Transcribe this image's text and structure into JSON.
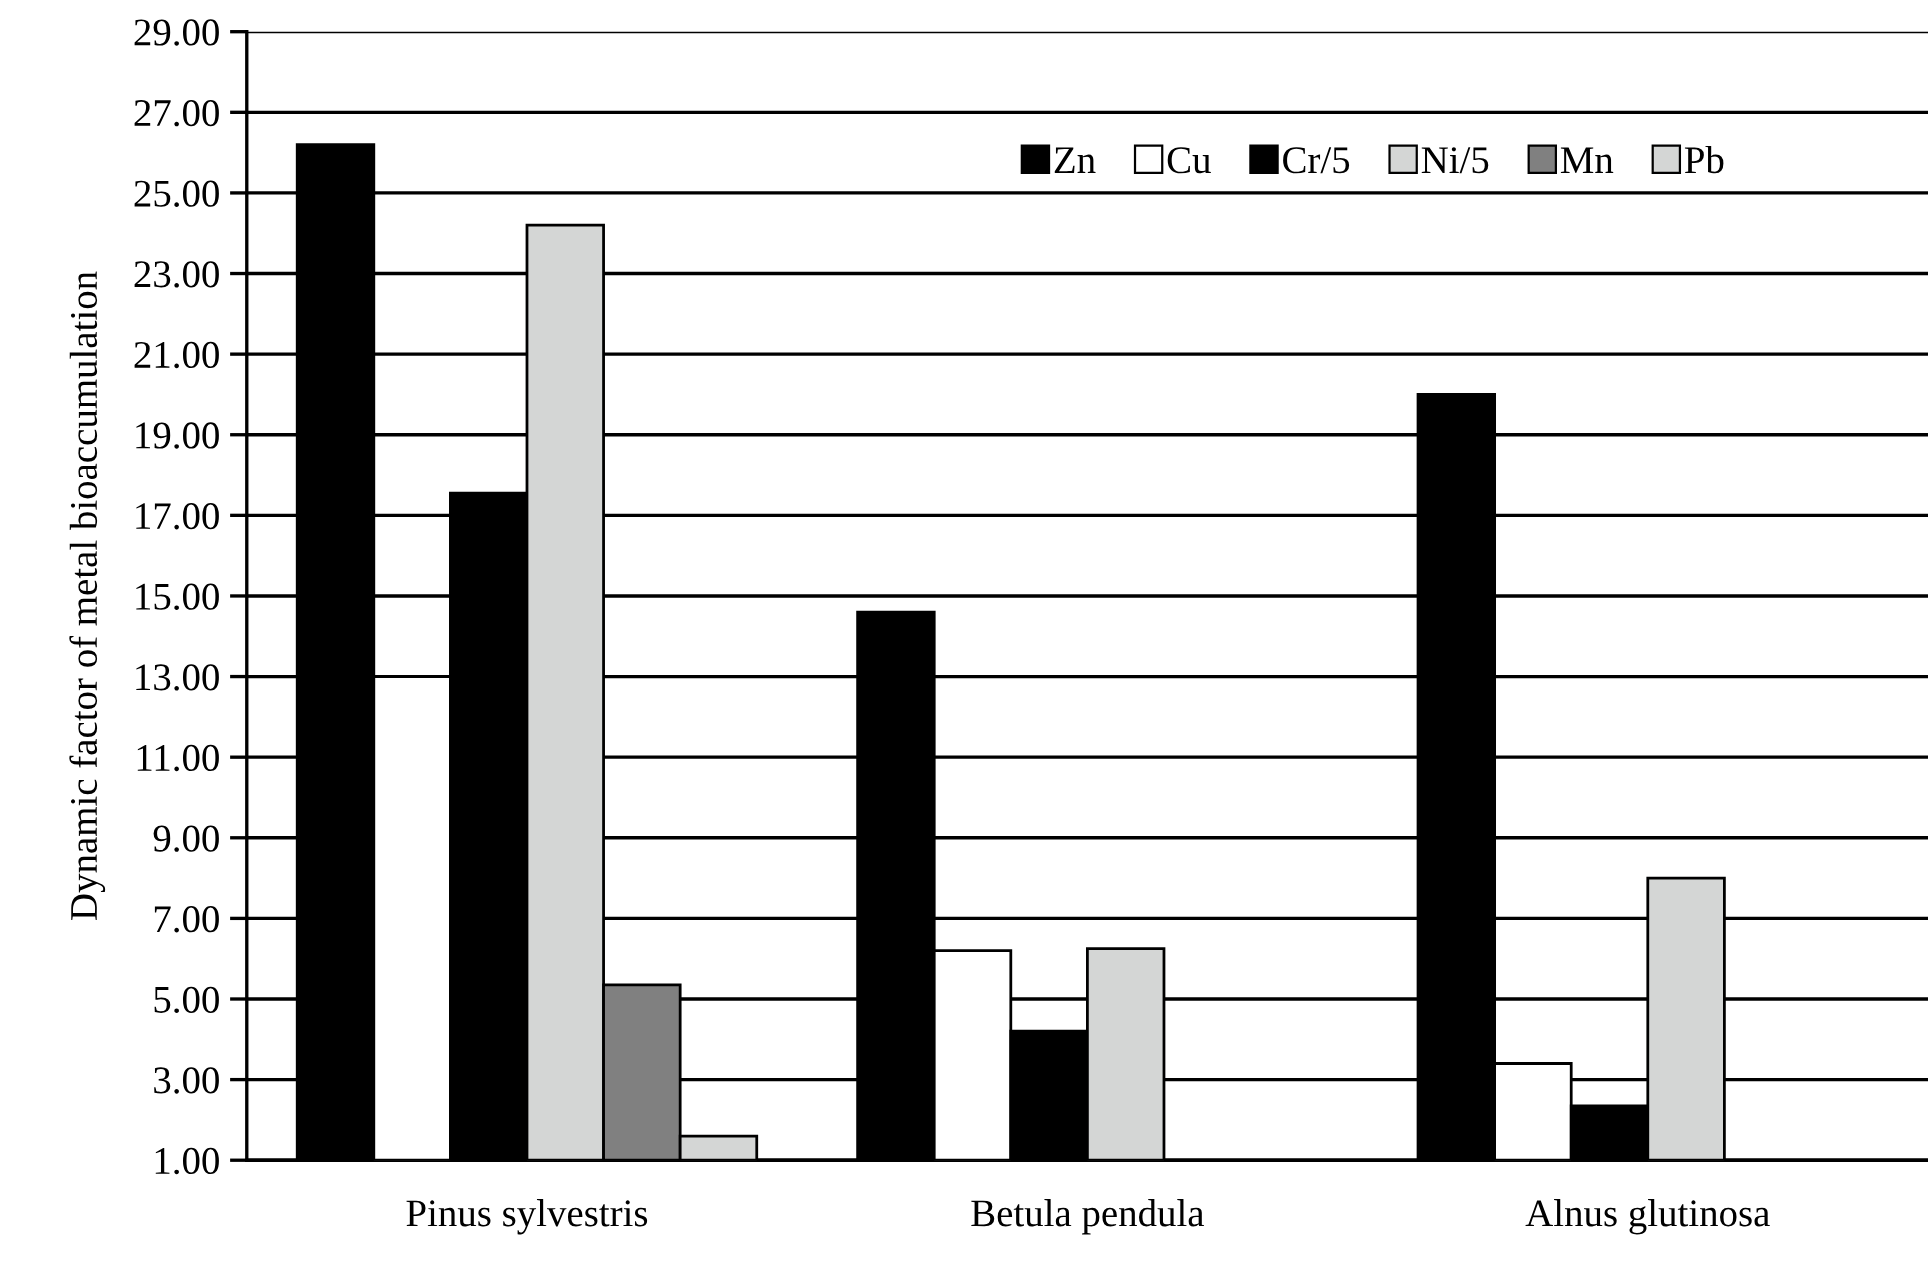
{
  "chart_data": {
    "type": "bar",
    "ylabel": "Dynamic factor of metal bioaccumulation",
    "categories": [
      "Pinus sylvestris",
      "Betula pendula",
      "Alnus glutinosa"
    ],
    "series": [
      {
        "name": "Zn",
        "color": "#000000",
        "values": [
          26.2,
          14.6,
          20.0
        ]
      },
      {
        "name": "Cu",
        "color": "#ffffff",
        "values": [
          13.0,
          6.2,
          3.4
        ]
      },
      {
        "name": "Cr/5",
        "color": "#000000",
        "values": [
          17.55,
          4.2,
          2.35
        ]
      },
      {
        "name": "Ni/5",
        "color": "#d4d6d5",
        "values": [
          24.2,
          6.25,
          8.0
        ]
      },
      {
        "name": "Mn",
        "color": "#808080",
        "values": [
          5.35,
          null,
          null
        ]
      },
      {
        "name": "Pb",
        "color": "#d4d6d5",
        "values": [
          1.6,
          null,
          null
        ]
      }
    ],
    "ylim": [
      1,
      29
    ],
    "yticks": [
      {
        "value": 1,
        "label": "1.00"
      },
      {
        "value": 3,
        "label": "3.00"
      },
      {
        "value": 5,
        "label": "5.00"
      },
      {
        "value": 7,
        "label": "7.00"
      },
      {
        "value": 9,
        "label": "9.00"
      },
      {
        "value": 11,
        "label": "11.00"
      },
      {
        "value": 13,
        "label": "13.00"
      },
      {
        "value": 15,
        "label": "15.00"
      },
      {
        "value": 17,
        "label": "17.00"
      },
      {
        "value": 19,
        "label": "19.00"
      },
      {
        "value": 21,
        "label": "21.00"
      },
      {
        "value": 23,
        "label": "23.00"
      },
      {
        "value": 25,
        "label": "25.00"
      },
      {
        "value": 27,
        "label": "27.00"
      },
      {
        "value": 29,
        "label": "29.00"
      }
    ],
    "grid": "y",
    "legend": "top right"
  }
}
